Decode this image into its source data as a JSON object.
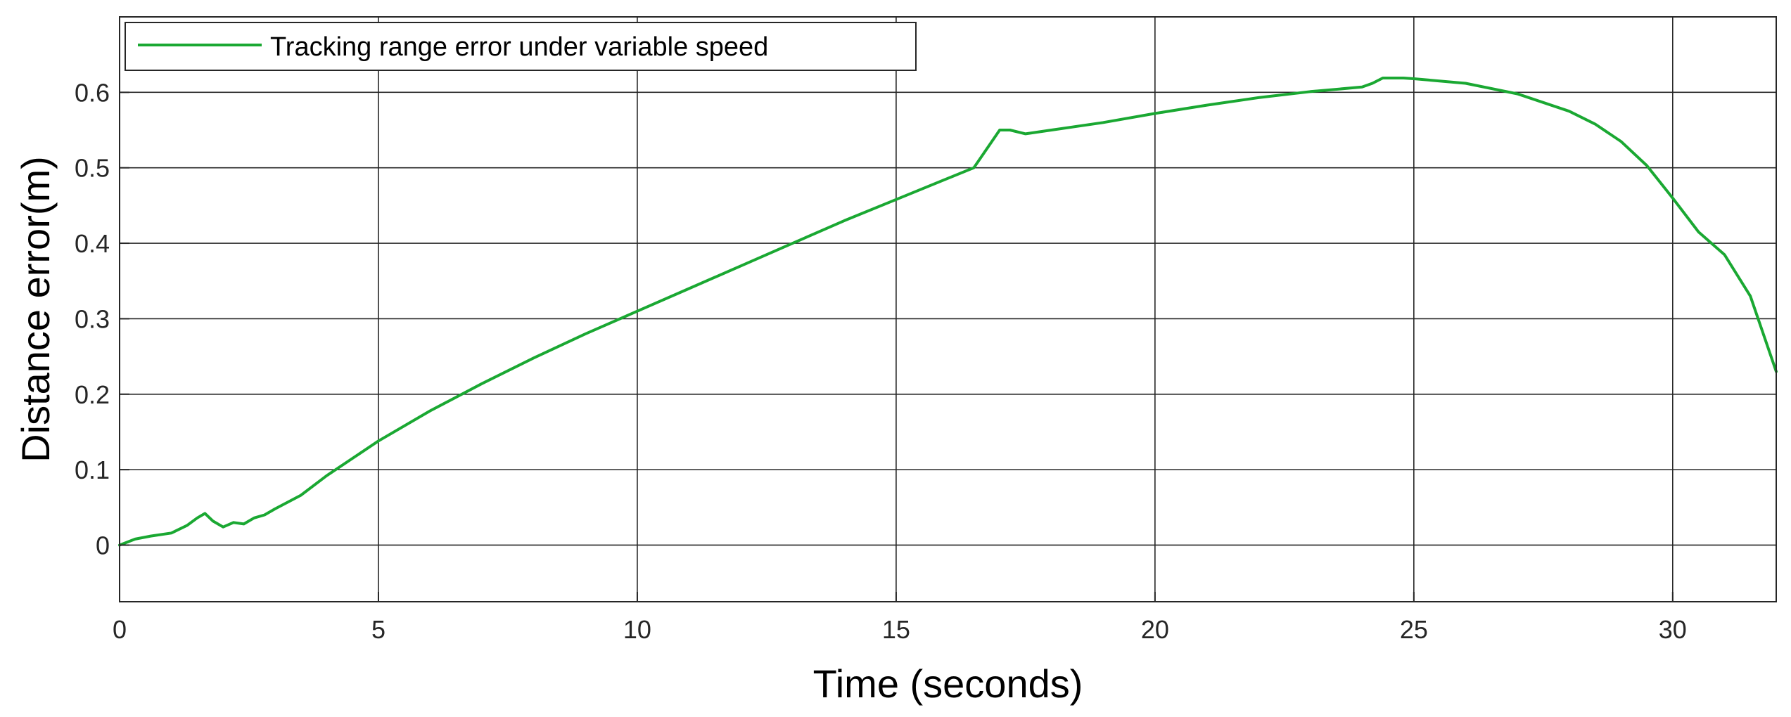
{
  "chart_data": {
    "type": "line",
    "title": "",
    "xlabel": "Time (seconds)",
    "ylabel": "Distance error(m)",
    "xlim": [
      0,
      32
    ],
    "ylim": [
      -0.075,
      0.7
    ],
    "xticks": [
      0,
      5,
      10,
      15,
      20,
      25,
      30
    ],
    "yticks": [
      0,
      0.1,
      0.2,
      0.3,
      0.4,
      0.5,
      0.6
    ],
    "grid": true,
    "legend_position": "top-left",
    "series": [
      {
        "name": "Tracking range error under variable speed",
        "color": "#1aa832",
        "x": [
          0,
          0.3,
          0.6,
          1.0,
          1.3,
          1.5,
          1.65,
          1.8,
          2.0,
          2.2,
          2.4,
          2.6,
          2.8,
          3.0,
          3.5,
          4.0,
          5.0,
          6.0,
          7.0,
          8.0,
          9.0,
          10.0,
          11.0,
          12.0,
          13.0,
          14.0,
          15.0,
          16.0,
          16.5,
          16.8,
          17.0,
          17.2,
          17.5,
          18.0,
          19.0,
          20.0,
          21.0,
          22.0,
          23.0,
          24.0,
          24.2,
          24.4,
          24.8,
          25.0,
          26.0,
          27.0,
          28.0,
          28.5,
          29.0,
          29.5,
          30.0,
          30.5,
          31.0,
          31.5,
          32.0
        ],
        "y": [
          0,
          0.008,
          0.012,
          0.016,
          0.026,
          0.036,
          0.042,
          0.032,
          0.024,
          0.03,
          0.028,
          0.036,
          0.04,
          0.048,
          0.066,
          0.092,
          0.138,
          0.178,
          0.214,
          0.248,
          0.28,
          0.31,
          0.34,
          0.37,
          0.4,
          0.43,
          0.458,
          0.486,
          0.5,
          0.53,
          0.55,
          0.55,
          0.545,
          0.55,
          0.56,
          0.572,
          0.583,
          0.593,
          0.601,
          0.607,
          0.612,
          0.619,
          0.619,
          0.618,
          0.612,
          0.598,
          0.575,
          0.558,
          0.535,
          0.503,
          0.46,
          0.415,
          0.385,
          0.33,
          0.23
        ]
      }
    ]
  }
}
